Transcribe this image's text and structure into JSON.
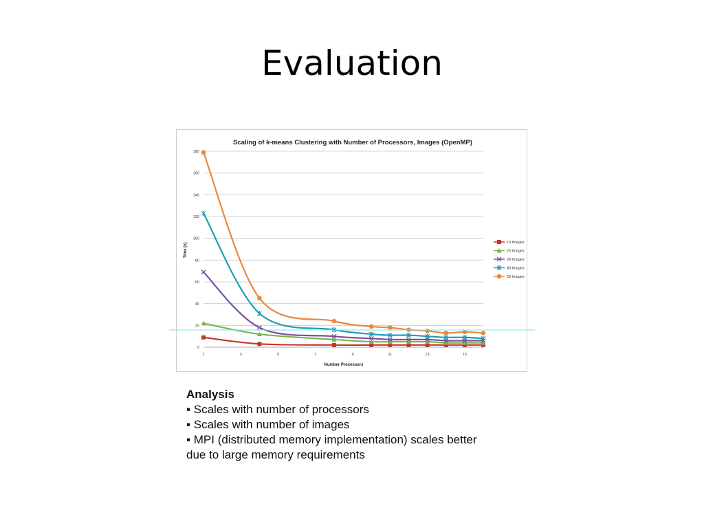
{
  "slide": {
    "title": "Evaluation"
  },
  "analysis": {
    "heading": "Analysis",
    "lines": [
      "▪ Scales with number of processors",
      "▪ Scales with number of images",
      "▪ MPI (distributed memory implementation) scales better",
      "due to large memory requirements"
    ]
  },
  "colors": {
    "gridline": "#c8c8c8",
    "highlight_line": "#7fe6ee"
  },
  "chart_data": {
    "type": "line",
    "title": "Scaling of k-means Clustering with Number of Processors, Images (OpenMP)",
    "xlabel": "Number Processors",
    "ylabel": "Time (s)",
    "xlim": [
      1,
      16
    ],
    "ylim": [
      0,
      180
    ],
    "xticks": [
      1,
      3,
      5,
      7,
      9,
      11,
      13,
      15
    ],
    "yticks": [
      0,
      20,
      40,
      60,
      80,
      100,
      120,
      140,
      160,
      180
    ],
    "grid": true,
    "smooth": true,
    "legend_position": "right",
    "series": [
      {
        "name": "10 Images",
        "color": "#c0392b",
        "marker": "square",
        "x": [
          1,
          4,
          8,
          10,
          11,
          12,
          13,
          14,
          15,
          16
        ],
        "y": [
          9,
          3,
          2,
          2,
          2,
          2,
          2,
          2,
          2,
          2
        ]
      },
      {
        "name": "20 Images",
        "color": "#7fb24a",
        "marker": "triangle",
        "x": [
          1,
          4,
          8,
          10,
          11,
          12,
          13,
          14,
          15,
          16
        ],
        "y": [
          22,
          12,
          7,
          5,
          5,
          5,
          5,
          4,
          4,
          4
        ]
      },
      {
        "name": "30 Images",
        "color": "#7a4fa0",
        "marker": "x",
        "x": [
          1,
          4,
          8,
          10,
          11,
          12,
          13,
          14,
          15,
          16
        ],
        "y": [
          69,
          18,
          10,
          8,
          7,
          7,
          7,
          6,
          6,
          6
        ]
      },
      {
        "name": "40 Images",
        "color": "#1f9db3",
        "marker": "star",
        "x": [
          1,
          4,
          8,
          10,
          11,
          12,
          13,
          14,
          15,
          16
        ],
        "y": [
          123,
          31,
          16,
          12,
          11,
          11,
          10,
          9,
          9,
          8
        ]
      },
      {
        "name": "50 Images",
        "color": "#e8883a",
        "marker": "circle",
        "x": [
          1,
          4,
          8,
          10,
          11,
          12,
          13,
          14,
          15,
          16
        ],
        "y": [
          179,
          45,
          24,
          19,
          18,
          16,
          15,
          13,
          14,
          13
        ]
      }
    ]
  }
}
